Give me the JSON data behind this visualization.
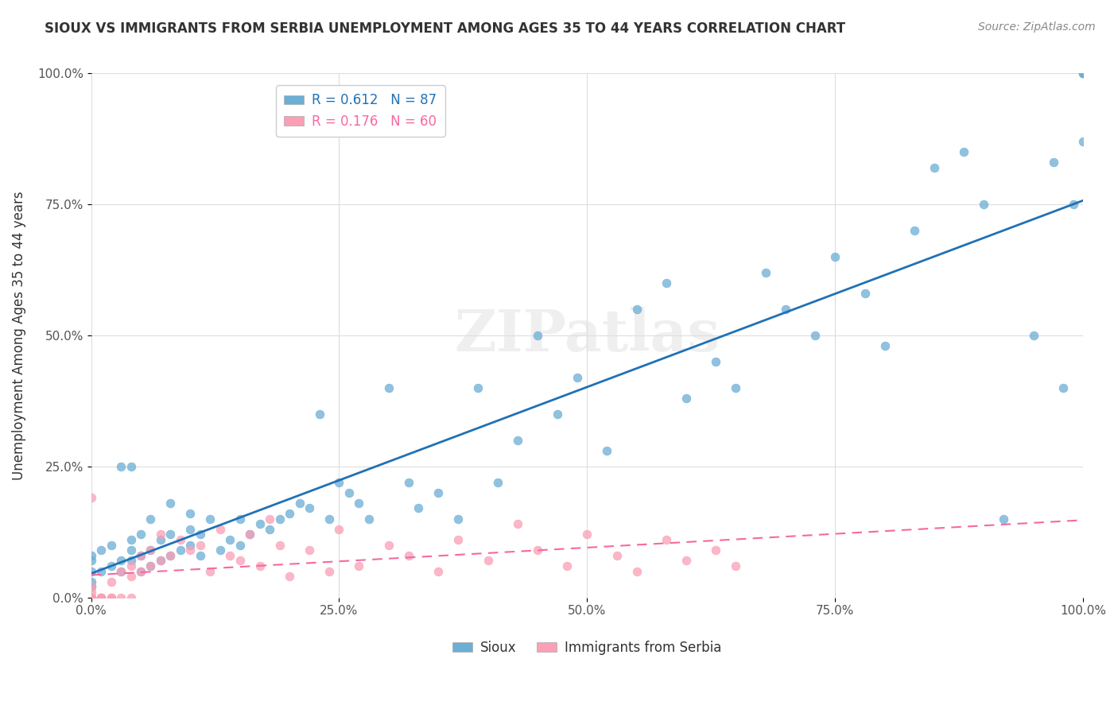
{
  "title": "SIOUX VS IMMIGRANTS FROM SERBIA UNEMPLOYMENT AMONG AGES 35 TO 44 YEARS CORRELATION CHART",
  "source_text": "Source: ZipAtlas.com",
  "xlabel": "",
  "ylabel": "Unemployment Among Ages 35 to 44 years",
  "watermark": "ZIPatlas",
  "xlim": [
    0.0,
    1.0
  ],
  "ylim": [
    0.0,
    1.0
  ],
  "xtick_labels": [
    "0.0%",
    "25.0%",
    "50.0%",
    "75.0%",
    "100.0%"
  ],
  "xtick_vals": [
    0.0,
    0.25,
    0.5,
    0.75,
    1.0
  ],
  "ytick_labels": [
    "0.0%",
    "25.0%",
    "50.0%",
    "75.0%",
    "100.0%"
  ],
  "ytick_vals": [
    0.0,
    0.25,
    0.5,
    0.75,
    1.0
  ],
  "sioux_color": "#6baed6",
  "serbia_color": "#fa9fb5",
  "sioux_R": 0.612,
  "sioux_N": 87,
  "serbia_R": 0.176,
  "serbia_N": 60,
  "legend_label_sioux": "Sioux",
  "legend_label_serbia": "Immigrants from Serbia",
  "sioux_x": [
    0.0,
    0.0,
    0.0,
    0.0,
    0.0,
    0.01,
    0.01,
    0.02,
    0.02,
    0.03,
    0.03,
    0.03,
    0.04,
    0.04,
    0.04,
    0.04,
    0.05,
    0.05,
    0.05,
    0.06,
    0.06,
    0.06,
    0.07,
    0.07,
    0.08,
    0.08,
    0.08,
    0.09,
    0.1,
    0.1,
    0.1,
    0.11,
    0.11,
    0.12,
    0.13,
    0.14,
    0.15,
    0.15,
    0.16,
    0.17,
    0.18,
    0.19,
    0.2,
    0.21,
    0.22,
    0.23,
    0.24,
    0.25,
    0.26,
    0.27,
    0.28,
    0.3,
    0.32,
    0.33,
    0.35,
    0.37,
    0.39,
    0.41,
    0.43,
    0.45,
    0.47,
    0.49,
    0.52,
    0.55,
    0.58,
    0.6,
    0.63,
    0.65,
    0.68,
    0.7,
    0.73,
    0.75,
    0.78,
    0.8,
    0.83,
    0.85,
    0.88,
    0.9,
    0.92,
    0.95,
    0.97,
    0.98,
    0.99,
    1.0,
    1.0,
    1.0,
    1.0
  ],
  "sioux_y": [
    0.02,
    0.03,
    0.05,
    0.07,
    0.08,
    0.05,
    0.09,
    0.06,
    0.1,
    0.05,
    0.07,
    0.25,
    0.25,
    0.07,
    0.09,
    0.11,
    0.05,
    0.08,
    0.12,
    0.06,
    0.09,
    0.15,
    0.07,
    0.11,
    0.08,
    0.12,
    0.18,
    0.09,
    0.1,
    0.13,
    0.16,
    0.08,
    0.12,
    0.15,
    0.09,
    0.11,
    0.1,
    0.15,
    0.12,
    0.14,
    0.13,
    0.15,
    0.16,
    0.18,
    0.17,
    0.35,
    0.15,
    0.22,
    0.2,
    0.18,
    0.15,
    0.4,
    0.22,
    0.17,
    0.2,
    0.15,
    0.4,
    0.22,
    0.3,
    0.5,
    0.35,
    0.42,
    0.28,
    0.55,
    0.6,
    0.38,
    0.45,
    0.4,
    0.62,
    0.55,
    0.5,
    0.65,
    0.58,
    0.48,
    0.7,
    0.82,
    0.85,
    0.75,
    0.15,
    0.5,
    0.83,
    0.4,
    0.75,
    0.87,
    1.0,
    1.0,
    1.0
  ],
  "serbia_x": [
    0.0,
    0.0,
    0.0,
    0.0,
    0.0,
    0.0,
    0.0,
    0.0,
    0.0,
    0.0,
    0.01,
    0.01,
    0.01,
    0.01,
    0.02,
    0.02,
    0.02,
    0.03,
    0.03,
    0.04,
    0.04,
    0.04,
    0.05,
    0.05,
    0.06,
    0.06,
    0.07,
    0.07,
    0.08,
    0.09,
    0.1,
    0.11,
    0.12,
    0.13,
    0.14,
    0.15,
    0.16,
    0.17,
    0.18,
    0.19,
    0.2,
    0.22,
    0.24,
    0.25,
    0.27,
    0.3,
    0.32,
    0.35,
    0.37,
    0.4,
    0.43,
    0.45,
    0.48,
    0.5,
    0.53,
    0.55,
    0.58,
    0.6,
    0.63,
    0.65
  ],
  "serbia_y": [
    0.0,
    0.0,
    0.0,
    0.0,
    0.0,
    0.0,
    0.0,
    0.01,
    0.02,
    0.19,
    0.0,
    0.0,
    0.0,
    0.0,
    0.0,
    0.0,
    0.03,
    0.0,
    0.05,
    0.0,
    0.04,
    0.06,
    0.05,
    0.08,
    0.06,
    0.09,
    0.07,
    0.12,
    0.08,
    0.11,
    0.09,
    0.1,
    0.05,
    0.13,
    0.08,
    0.07,
    0.12,
    0.06,
    0.15,
    0.1,
    0.04,
    0.09,
    0.05,
    0.13,
    0.06,
    0.1,
    0.08,
    0.05,
    0.11,
    0.07,
    0.14,
    0.09,
    0.06,
    0.12,
    0.08,
    0.05,
    0.11,
    0.07,
    0.09,
    0.06
  ]
}
